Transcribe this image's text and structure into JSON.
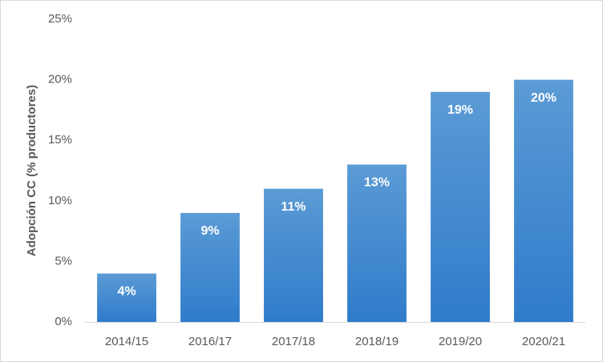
{
  "chart_data": {
    "type": "bar",
    "y_label": "Adopción CC (% productores)",
    "categories": [
      "2014/15",
      "2016/17",
      "2017/18",
      "2018/19",
      "2019/20",
      "2020/21"
    ],
    "values": [
      4,
      9,
      11,
      13,
      19,
      20
    ],
    "value_labels": [
      "4%",
      "9%",
      "11%",
      "13%",
      "19%",
      "20%"
    ],
    "color": "#5b9bd5",
    "ylim": [
      0,
      25
    ],
    "yticks": [
      {
        "value": 0,
        "label": "0%"
      },
      {
        "value": 5,
        "label": "5%"
      },
      {
        "value": 10,
        "label": "10%"
      },
      {
        "value": 15,
        "label": "15%"
      },
      {
        "value": 20,
        "label": "20%"
      },
      {
        "value": 25,
        "label": "25%"
      }
    ],
    "grid": false
  }
}
